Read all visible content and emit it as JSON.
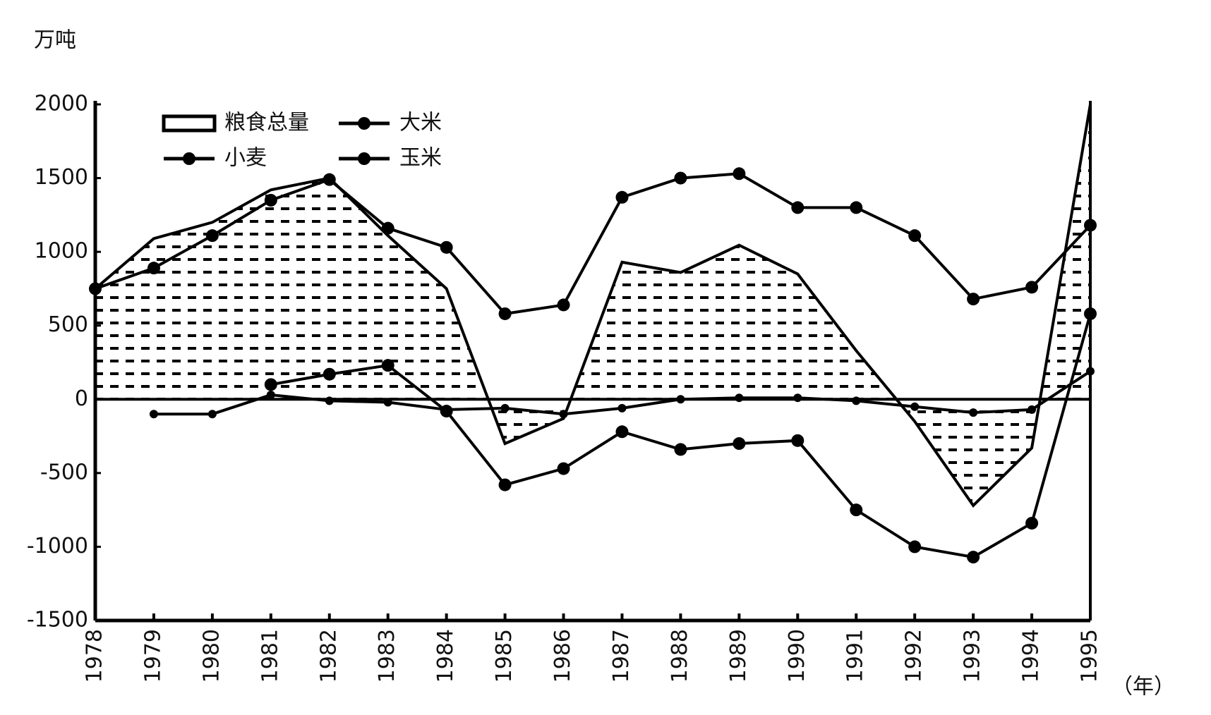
{
  "chart_data": {
    "type": "line",
    "y_unit": "万吨",
    "x_label": "（年）",
    "categories": [
      "1978",
      "1979",
      "1980",
      "1981",
      "1982",
      "1983",
      "1984",
      "1985",
      "1986",
      "1987",
      "1988",
      "1989",
      "1990",
      "1991",
      "1992",
      "1993",
      "1994",
      "1995"
    ],
    "series": [
      {
        "name": "粮食总量",
        "type": "area",
        "color": "#000000",
        "values": [
          750,
          1090,
          1200,
          1420,
          1500,
          1110,
          750,
          -300,
          -130,
          930,
          860,
          1045,
          850,
          330,
          -150,
          -720,
          -330,
          2000
        ]
      },
      {
        "name": "大米",
        "type": "line",
        "color": "#000000",
        "values": [
          null,
          -100,
          -100,
          30,
          -10,
          -20,
          -70,
          -60,
          -100,
          -60,
          0,
          10,
          10,
          -10,
          -50,
          -90,
          -70,
          190
        ]
      },
      {
        "name": "小麦",
        "type": "line",
        "color": "#000000",
        "values": [
          750,
          890,
          1110,
          1350,
          1490,
          1160,
          1030,
          580,
          640,
          1370,
          1500,
          1530,
          1300,
          1300,
          1110,
          680,
          760,
          1180
        ]
      },
      {
        "name": "玉米",
        "type": "line",
        "color": "#000000",
        "values": [
          null,
          null,
          null,
          100,
          170,
          230,
          -80,
          -580,
          -470,
          -220,
          -340,
          -300,
          -280,
          -750,
          -1000,
          -1070,
          -840,
          580
        ]
      }
    ],
    "ylim": [
      -1500,
      2000
    ],
    "yticks": [
      -1500,
      -1000,
      -500,
      0,
      500,
      1000,
      1500,
      2000
    ],
    "legend": "upper left",
    "grid": false
  }
}
